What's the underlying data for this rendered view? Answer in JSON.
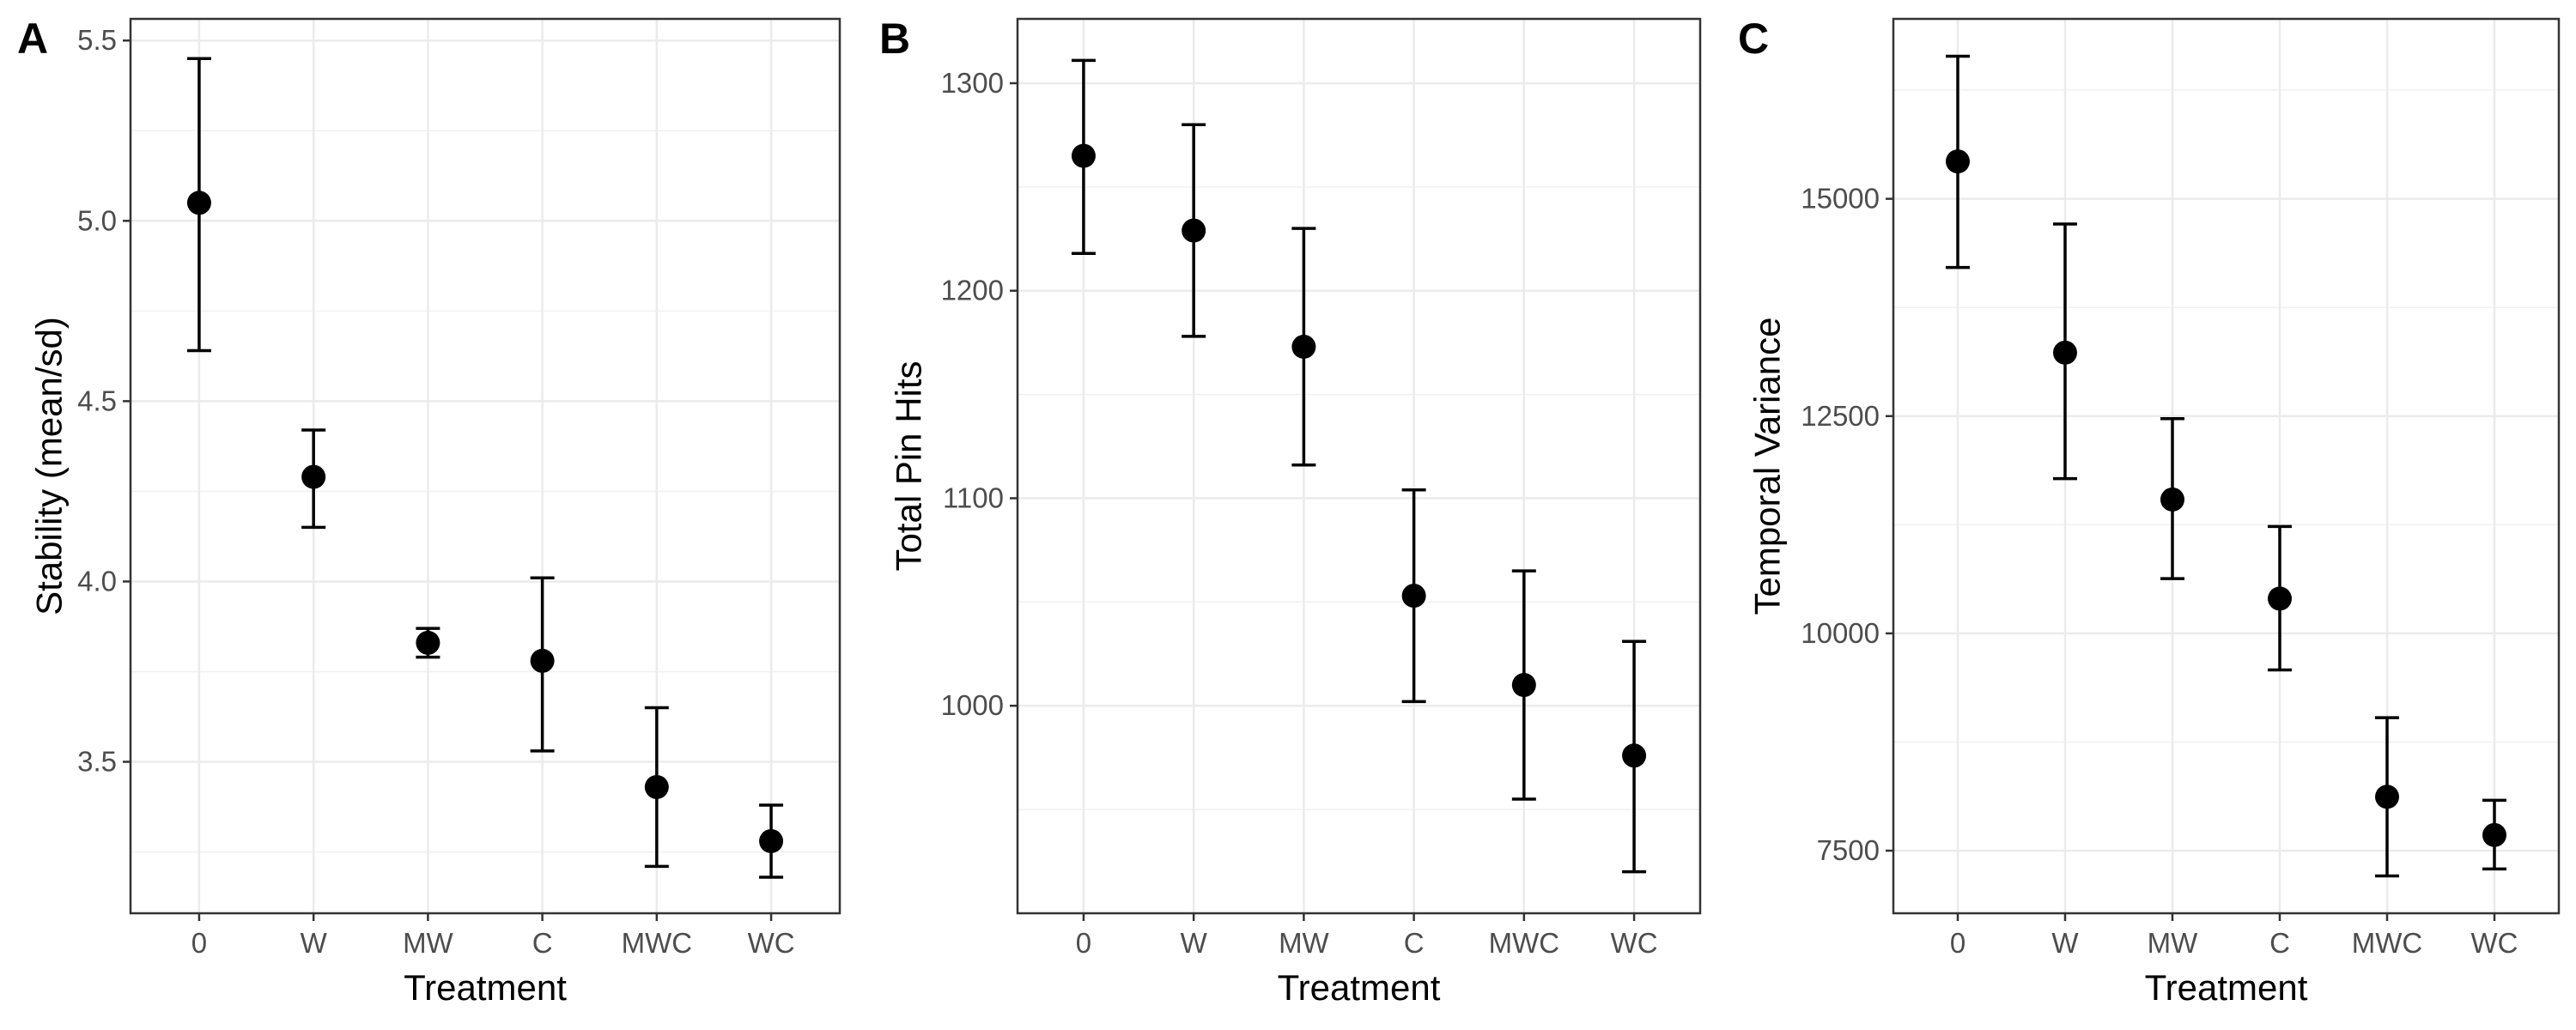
{
  "chart_data": [
    {
      "type": "scatter",
      "panel_label": "A",
      "xlabel": "Treatment",
      "ylabel": "Stability (mean/sd)",
      "categories": [
        "0",
        "W",
        "MW",
        "C",
        "MWC",
        "WC"
      ],
      "values": [
        5.05,
        4.29,
        3.83,
        3.78,
        3.43,
        3.28
      ],
      "error_low": [
        4.64,
        4.15,
        3.79,
        3.53,
        3.21,
        3.18
      ],
      "error_high": [
        5.45,
        4.42,
        3.87,
        4.01,
        3.65,
        3.38
      ],
      "ylim": [
        3.08,
        5.56
      ],
      "yticks": [
        3.5,
        4.0,
        4.5,
        5.0,
        5.5
      ],
      "ytick_labels": [
        "3.5",
        "4.0",
        "4.5",
        "5.0",
        "5.5"
      ],
      "grid": true
    },
    {
      "type": "scatter",
      "panel_label": "B",
      "xlabel": "Treatment",
      "ylabel": "Total Pin Hits",
      "categories": [
        "0",
        "W",
        "MW",
        "C",
        "MWC",
        "WC"
      ],
      "values": [
        1265,
        1229,
        1173,
        1053,
        1010,
        976
      ],
      "error_low": [
        1218,
        1178,
        1116,
        1002,
        955,
        920
      ],
      "error_high": [
        1311,
        1280,
        1230,
        1104,
        1065,
        1031
      ],
      "ylim": [
        900,
        1331
      ],
      "yticks": [
        1000,
        1100,
        1200,
        1300
      ],
      "ytick_labels": [
        "1000",
        "1100",
        "1200",
        "1300"
      ],
      "grid": true
    },
    {
      "type": "scatter",
      "panel_label": "C",
      "xlabel": "Treatment",
      "ylabel": "Temporal Variance",
      "categories": [
        "0",
        "W",
        "MW",
        "C",
        "MWC",
        "WC"
      ],
      "values": [
        15430,
        13230,
        11540,
        10400,
        8120,
        7680
      ],
      "error_low": [
        14210,
        11780,
        10630,
        9580,
        7210,
        7290
      ],
      "error_high": [
        16640,
        14710,
        12470,
        11230,
        9030,
        8080
      ],
      "ylim": [
        6780,
        17070
      ],
      "yticks": [
        7500,
        10000,
        12500,
        15000
      ],
      "ytick_labels": [
        "7500",
        "10000",
        "12500",
        "15000"
      ],
      "grid": true
    }
  ]
}
